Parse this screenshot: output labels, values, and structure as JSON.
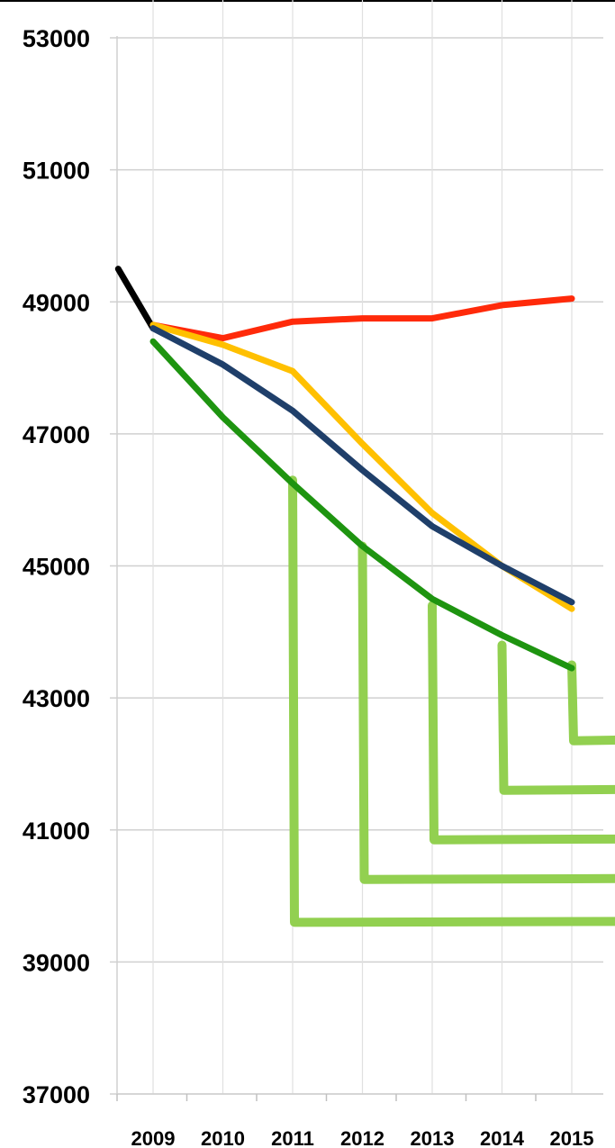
{
  "chart_data": {
    "type": "line",
    "title": "",
    "xlabel": "",
    "ylabel": "",
    "ylim": [
      37000,
      53000
    ],
    "y_ticks": [
      "53000",
      "51000",
      "49000",
      "47000",
      "45000",
      "43000",
      "41000",
      "39000",
      "37000"
    ],
    "x_ticks": [
      "2009",
      "2010",
      "2011",
      "2012",
      "2013",
      "2014",
      "2015"
    ],
    "grid": true,
    "legend": "none",
    "series": [
      {
        "color": "#000000",
        "points": [
          [
            2008.5,
            49500
          ],
          [
            2009,
            48600
          ]
        ]
      },
      {
        "color": "#ff2a0a",
        "points": [
          [
            2009,
            48650
          ],
          [
            2010,
            48450
          ],
          [
            2011,
            48700
          ],
          [
            2012,
            48750
          ],
          [
            2013,
            48750
          ],
          [
            2014,
            48950
          ],
          [
            2015,
            49050
          ]
        ]
      },
      {
        "color": "#ffc000",
        "points": [
          [
            2009,
            48650
          ],
          [
            2010,
            48350
          ],
          [
            2011,
            47950
          ],
          [
            2012,
            46850
          ],
          [
            2013,
            45800
          ],
          [
            2014,
            45000
          ],
          [
            2015,
            44350
          ]
        ]
      },
      {
        "color": "#1f3f6a",
        "points": [
          [
            2009,
            48600
          ],
          [
            2010,
            48050
          ],
          [
            2011,
            47350
          ],
          [
            2012,
            46450
          ],
          [
            2013,
            45600
          ],
          [
            2014,
            45000
          ],
          [
            2015,
            44450
          ]
        ]
      },
      {
        "color": "#1e9410",
        "points": [
          [
            2009,
            48400
          ],
          [
            2010,
            47250
          ],
          [
            2011,
            46250
          ],
          [
            2012,
            45300
          ],
          [
            2013,
            44500
          ],
          [
            2014,
            43950
          ],
          [
            2015,
            43450
          ]
        ]
      }
    ],
    "projections": [
      {
        "color": "#92d050",
        "start_year": 2011,
        "top": 46300,
        "bottom": 39600
      },
      {
        "color": "#92d050",
        "start_year": 2012,
        "top": 45300,
        "bottom": 40250
      },
      {
        "color": "#92d050",
        "start_year": 2013,
        "top": 44400,
        "bottom": 40850
      },
      {
        "color": "#92d050",
        "start_year": 2014,
        "top": 43800,
        "bottom": 41600
      },
      {
        "color": "#92d050",
        "start_year": 2015,
        "top": 43500,
        "bottom": 42350
      }
    ]
  }
}
